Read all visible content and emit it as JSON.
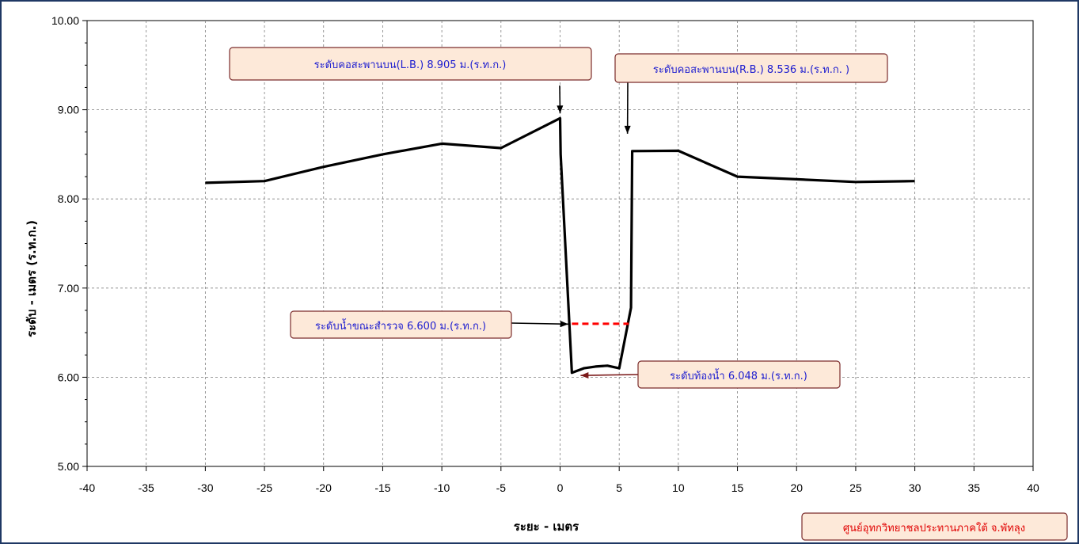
{
  "chart_data": {
    "type": "line",
    "title": "",
    "xlabel": "ระยะ - เมตร",
    "ylabel": "ระดับ - เมตร (ร.ท.ก.)",
    "xlim": [
      -40,
      40
    ],
    "ylim": [
      5.0,
      10.0
    ],
    "x_ticks": [
      "-40",
      "-35",
      "-30",
      "-25",
      "-20",
      "-15",
      "-10",
      "-5",
      "0",
      "5",
      "10",
      "15",
      "20",
      "25",
      "30",
      "35",
      "40"
    ],
    "y_ticks": [
      "5.00",
      "6.00",
      "7.00",
      "8.00",
      "9.00",
      "10.00"
    ],
    "grid": true,
    "series": [
      {
        "color": "#000000",
        "points": [
          [
            -30,
            8.18
          ],
          [
            -25,
            8.2
          ],
          [
            -20,
            8.36
          ],
          [
            -15,
            8.5
          ],
          [
            -10,
            8.62
          ],
          [
            -5,
            8.57
          ],
          [
            0,
            8.905
          ],
          [
            0.05,
            8.5
          ],
          [
            1.0,
            6.05
          ],
          [
            2.0,
            6.1
          ],
          [
            3.0,
            6.12
          ],
          [
            4.0,
            6.13
          ],
          [
            5.0,
            6.1
          ],
          [
            6.0,
            6.78
          ],
          [
            6.1,
            8.536
          ],
          [
            10,
            8.54
          ],
          [
            15,
            8.25
          ],
          [
            20,
            8.22
          ],
          [
            25,
            8.19
          ],
          [
            30,
            8.2
          ]
        ]
      }
    ],
    "water_level": {
      "value": 6.6,
      "x_start": 1.0,
      "x_end": 5.8,
      "color": "#ff0000"
    },
    "annotations": [
      {
        "id": "lb",
        "text": "ระดับคอสะพานบน(L.B.) 8.905 ม.(ร.ท.ก.)",
        "arrow_color": "#000000",
        "target": [
          0,
          8.905
        ]
      },
      {
        "id": "rb",
        "text": "ระดับคอสะพานบน(R.B.) 8.536 ม.(ร.ท.ก. )",
        "arrow_color": "#000000",
        "target": [
          5.7,
          8.536
        ]
      },
      {
        "id": "wl",
        "text": "ระดับน้ำขณะสำรวจ 6.600 ม.(ร.ท.ก.)",
        "arrow_color": "#000000",
        "target": [
          0.7,
          6.6
        ]
      },
      {
        "id": "bed",
        "text": "ระดับท้องน้ำ 6.048 ม.(ร.ท.ก.)",
        "arrow_color": "#7b1a1a",
        "target": [
          1.6,
          6.02
        ]
      }
    ]
  },
  "credit": "ศูนย์อุทกวิทยาชลประทานภาคใต้ จ.พัทลุง"
}
